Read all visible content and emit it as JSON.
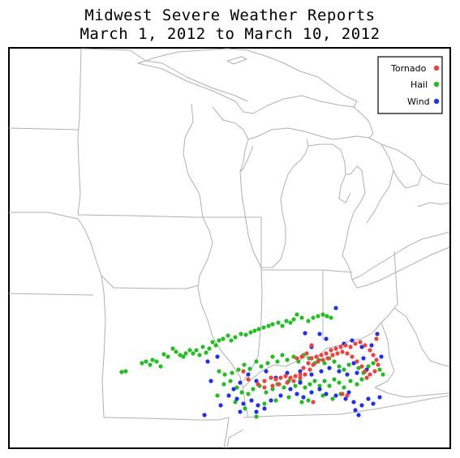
{
  "title": {
    "line1": "Midwest Severe Weather Reports",
    "line2": "March 1, 2012 to March 10, 2012"
  },
  "legend": {
    "placement": "top-right",
    "items": [
      {
        "key": "tornado",
        "label": "Tornado",
        "color": "#f04040"
      },
      {
        "key": "hail",
        "label": "Hail",
        "color": "#20c020"
      },
      {
        "key": "wind",
        "label": "Wind",
        "color": "#2030f0"
      }
    ]
  },
  "colors": {
    "borders": "#b0b0b0",
    "frame": "#000000",
    "background": "#ffffff"
  }
}
